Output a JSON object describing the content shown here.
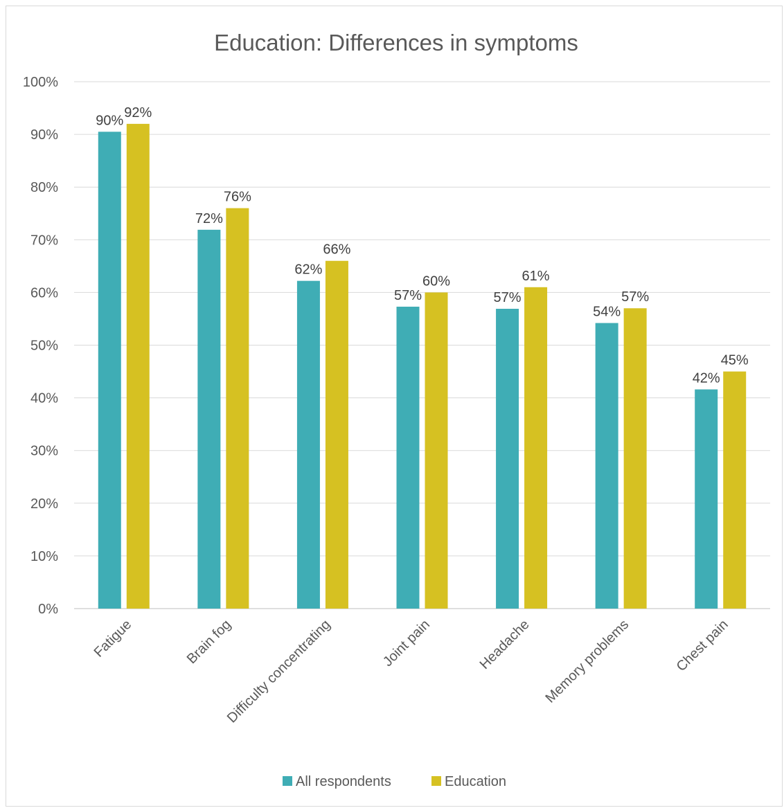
{
  "chart_data": {
    "type": "bar",
    "title": "Education: Differences in symptoms",
    "xlabel": "",
    "ylabel": "",
    "ylim": [
      0,
      100
    ],
    "yticks": [
      "0%",
      "10%",
      "20%",
      "30%",
      "40%",
      "50%",
      "60%",
      "70%",
      "80%",
      "90%",
      "100%"
    ],
    "categories": [
      "Fatigue",
      "Brain fog",
      "Difficulty concentrating",
      "Joint pain",
      "Headache",
      "Memory problems",
      "Chest pain"
    ],
    "series": [
      {
        "name": "All respondents",
        "color": "#3fadb5",
        "values": [
          90.5,
          71.9,
          62.2,
          57.3,
          56.9,
          54.2,
          41.6
        ],
        "labels": [
          "90%",
          "72%",
          "62%",
          "57%",
          "57%",
          "54%",
          "42%"
        ]
      },
      {
        "name": "Education",
        "color": "#d6c122",
        "values": [
          92,
          76,
          66,
          60,
          61,
          57,
          45
        ],
        "labels": [
          "92%",
          "76%",
          "66%",
          "60%",
          "61%",
          "57%",
          "45%"
        ]
      }
    ],
    "grid": true,
    "legend_position": "bottom"
  }
}
